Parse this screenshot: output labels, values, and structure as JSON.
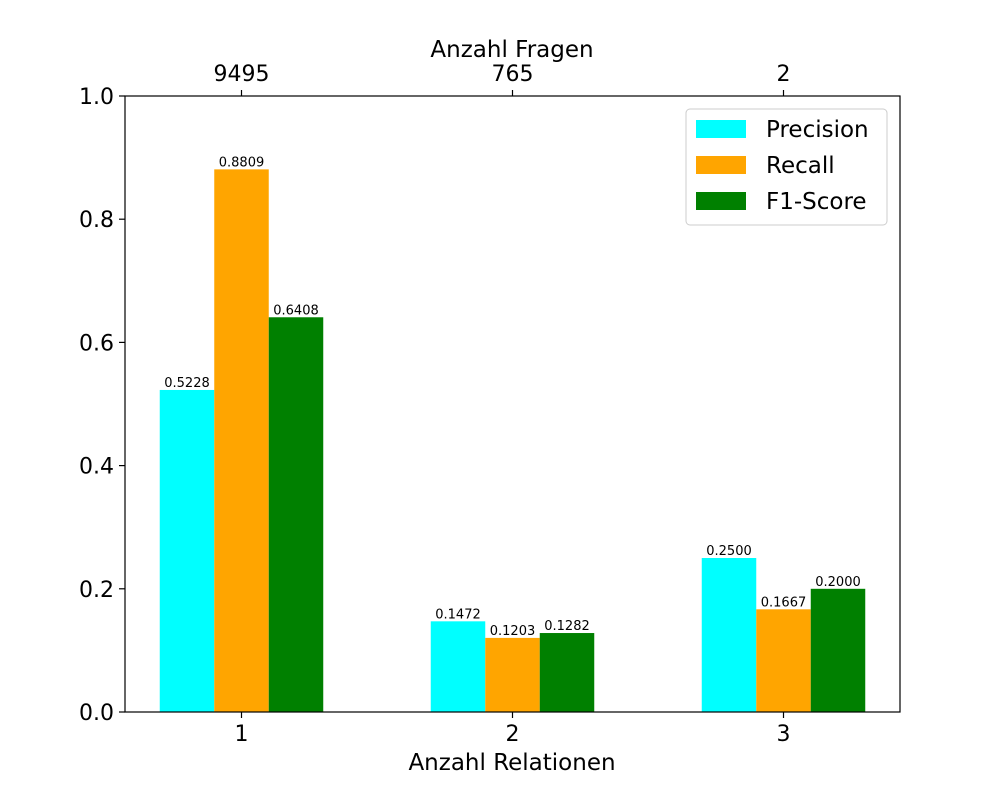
{
  "chart_data": {
    "type": "bar",
    "categories": [
      "1",
      "2",
      "3"
    ],
    "top_axis": {
      "label": "Anzahl Fragen",
      "tick_labels": [
        "9495",
        "765",
        "2"
      ]
    },
    "xlabel": "Anzahl Relationen",
    "ylabel": "",
    "ylim": [
      0,
      1.0
    ],
    "y_ticks": [
      0.0,
      0.2,
      0.4,
      0.6,
      0.8,
      1.0
    ],
    "y_tick_labels": [
      "0.0",
      "0.2",
      "0.4",
      "0.6",
      "0.8",
      "1.0"
    ],
    "grid": false,
    "legend_position": "top-right",
    "series": [
      {
        "name": "Precision",
        "color": "#00ffff",
        "values": [
          0.5228,
          0.1472,
          0.25
        ],
        "labels": [
          "0.5228",
          "0.1472",
          "0.2500"
        ]
      },
      {
        "name": "Recall",
        "color": "#ffa500",
        "values": [
          0.8809,
          0.1203,
          0.1667
        ],
        "labels": [
          "0.8809",
          "0.1203",
          "0.1667"
        ]
      },
      {
        "name": "F1-Score",
        "color": "#008000",
        "values": [
          0.6408,
          0.1282,
          0.2
        ],
        "labels": [
          "0.6408",
          "0.1282",
          "0.2000"
        ]
      }
    ]
  }
}
